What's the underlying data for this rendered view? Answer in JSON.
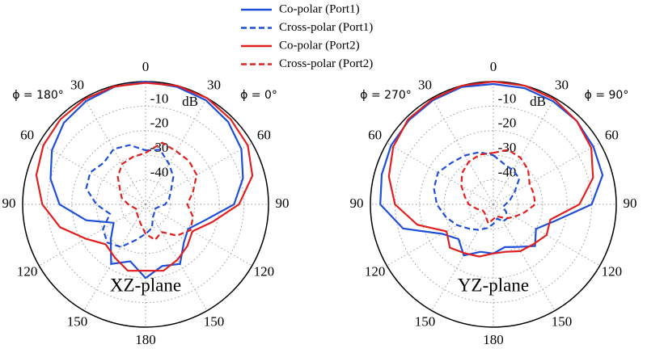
{
  "chart_data": [
    {
      "type": "polar",
      "plane_label": "XZ-plane",
      "r_unit": "dB",
      "phi_left": "ϕ = 180°",
      "phi_right": "ϕ = 0°",
      "legend": "upper center",
      "x": [
        0,
        15,
        30,
        45,
        60,
        75,
        90,
        105,
        120,
        135,
        150,
        165,
        180,
        195,
        210,
        225,
        240,
        255,
        270,
        285,
        300,
        315,
        330,
        345
      ],
      "rlim": [
        -50,
        0
      ],
      "rticks": [
        -40,
        -30,
        -20,
        -10
      ],
      "thetaticks": [
        0,
        30,
        60,
        90,
        120,
        150,
        180,
        {
          "value": 210,
          "label": "150"
        },
        {
          "value": 240,
          "label": "120"
        },
        {
          "value": 270,
          "label": "90"
        },
        {
          "value": 300,
          "label": "60"
        },
        {
          "value": 330,
          "label": "30"
        }
      ],
      "grid": true,
      "series": [
        {
          "name": "Co-polar (Port1)",
          "color": "#1f4fd6",
          "linestyle": "solid",
          "values": [
            0,
            -0.5,
            -1,
            -2.5,
            -5,
            -9,
            -14,
            -25,
            -30,
            -28,
            -22,
            -24,
            -20,
            -26,
            -22,
            -30,
            -35,
            -25,
            -15,
            -10,
            -6,
            -3,
            -1.5,
            -0.5
          ]
        },
        {
          "name": "Cross-polar (Port1)",
          "color": "#1f4fd6",
          "linestyle": "dashed",
          "values": [
            -28,
            -27,
            -31,
            -34,
            -38,
            -40,
            -42,
            -45,
            -46,
            -45,
            -44,
            -40,
            -38,
            -35,
            -30,
            -28,
            -30,
            -35,
            -30,
            -25,
            -24,
            -26,
            -24,
            -25
          ]
        },
        {
          "name": "Co-polar (Port2)",
          "color": "#e0201f",
          "linestyle": "solid",
          "values": [
            -0.5,
            0,
            0,
            -1,
            -2,
            -5,
            -12,
            -22,
            -28,
            -26,
            -24,
            -22,
            -23,
            -22,
            -25,
            -27,
            -22,
            -14,
            -8,
            -4,
            -2,
            -1,
            -0.5,
            -0.3
          ]
        },
        {
          "name": "Cross-polar (Port2)",
          "color": "#e0201f",
          "linestyle": "dashed",
          "values": [
            -29,
            -24,
            -25,
            -25,
            -26,
            -30,
            -33,
            -30,
            -29,
            -32,
            -37,
            -35,
            -38,
            -42,
            -44,
            -45,
            -46,
            -45,
            -43,
            -40,
            -38,
            -34,
            -31,
            -30
          ]
        }
      ]
    },
    {
      "type": "polar",
      "plane_label": "YZ-plane",
      "r_unit": "dB",
      "phi_left": "ϕ = 270°",
      "phi_right": "ϕ = 90°",
      "x": [
        0,
        15,
        30,
        45,
        60,
        75,
        90,
        105,
        120,
        135,
        150,
        165,
        180,
        195,
        210,
        225,
        240,
        255,
        270,
        285,
        300,
        315,
        330,
        345
      ],
      "rlim": [
        -50,
        0
      ],
      "rticks": [
        -40,
        -30,
        -20,
        -10
      ],
      "thetaticks": [
        0,
        30,
        60,
        90,
        120,
        150,
        180,
        {
          "value": 210,
          "label": "150"
        },
        {
          "value": 240,
          "label": "120"
        },
        {
          "value": 270,
          "label": "90"
        },
        {
          "value": 300,
          "label": "60"
        },
        {
          "value": 330,
          "label": "30"
        }
      ],
      "grid": true,
      "series": [
        {
          "name": "Co-polar (Port1)",
          "color": "#1f4fd6",
          "linestyle": "solid",
          "values": [
            -1,
            -1,
            -1.5,
            -2,
            -3,
            -4,
            -10,
            -24,
            -30,
            -26,
            -30,
            -32,
            -30,
            -30,
            -26,
            -30,
            -26,
            -12,
            -4,
            -3,
            -2,
            -1.5,
            -1,
            -0.5
          ]
        },
        {
          "name": "Cross-polar (Port1)",
          "color": "#1f4fd6",
          "linestyle": "dashed",
          "values": [
            -30,
            -33,
            -34,
            -35,
            -40,
            -43,
            -45,
            -46,
            -44,
            -42,
            -42,
            -44,
            -42,
            -40,
            -38,
            -36,
            -33,
            -30,
            -27,
            -25,
            -24,
            -26,
            -27,
            -28
          ]
        },
        {
          "name": "Co-polar (Port2)",
          "color": "#e0201f",
          "linestyle": "solid",
          "values": [
            0,
            0,
            -0.5,
            -2,
            -4,
            -8,
            -15,
            -26,
            -25,
            -27,
            -28,
            -30,
            -30,
            -28,
            -27,
            -25,
            -28,
            -18,
            -10,
            -6,
            -3,
            -1,
            -0.5,
            0
          ]
        },
        {
          "name": "Cross-polar (Port2)",
          "color": "#e0201f",
          "linestyle": "dashed",
          "values": [
            -29,
            -27,
            -28,
            -30,
            -33,
            -33,
            -33,
            -37,
            -40,
            -42,
            -44,
            -45,
            -44,
            -42,
            -44,
            -45,
            -45,
            -43,
            -40,
            -38,
            -35,
            -32,
            -30,
            -29
          ]
        }
      ]
    }
  ]
}
